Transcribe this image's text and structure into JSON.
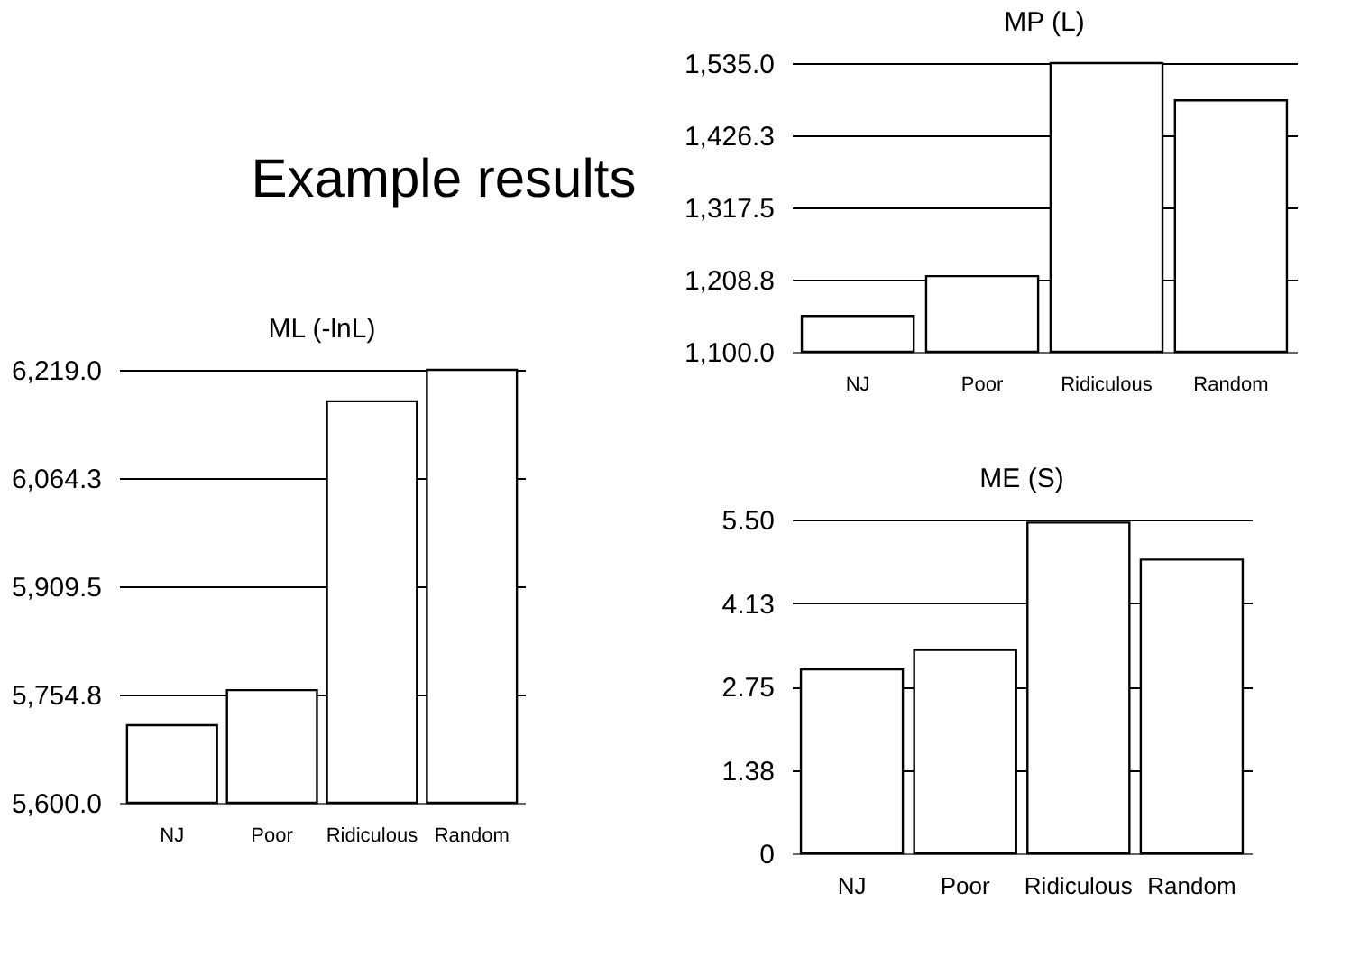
{
  "chart_data": [
    {
      "type": "other",
      "title": "Example results"
    },
    {
      "type": "bar",
      "title": "MP (L)",
      "categories": [
        "NJ",
        "Poor",
        "Ridiculous",
        "Random"
      ],
      "values": [
        1154,
        1214,
        1535,
        1479
      ],
      "color": "#ffffff",
      "ylim": [
        1100,
        1535
      ],
      "yticks": [
        {
          "value": 1100,
          "label": "1,100.0"
        },
        {
          "value": 1208.75,
          "label": "1,208.8"
        },
        {
          "value": 1317.5,
          "label": "1,317.5"
        },
        {
          "value": 1426.25,
          "label": "1,426.3"
        },
        {
          "value": 1535,
          "label": "1,535.0"
        }
      ],
      "grid": "y"
    },
    {
      "type": "bar",
      "title": "ML (-lnL)",
      "categories": [
        "NJ",
        "Poor",
        "Ridiculous",
        "Random"
      ],
      "values": [
        5711,
        5761,
        6174,
        6219
      ],
      "color": "#ffffff",
      "ylim": [
        5600,
        6219
      ],
      "yticks": [
        {
          "value": 5600,
          "label": "5,600.0"
        },
        {
          "value": 5754.75,
          "label": "5,754.8"
        },
        {
          "value": 5909.5,
          "label": "5,909.5"
        },
        {
          "value": 6064.25,
          "label": "6,064.3"
        },
        {
          "value": 6219,
          "label": "6,219.0"
        }
      ],
      "grid": "y"
    },
    {
      "type": "bar",
      "title": "ME (S)",
      "categories": [
        "NJ",
        "Poor",
        "Ridiculous",
        "Random"
      ],
      "values": [
        3.03,
        3.35,
        5.45,
        4.84
      ],
      "color": "#ffffff",
      "ylim": [
        0,
        5.5
      ],
      "yticks": [
        {
          "value": 0,
          "label": "0"
        },
        {
          "value": 1.375,
          "label": "1.38"
        },
        {
          "value": 2.75,
          "label": "2.75"
        },
        {
          "value": 4.125,
          "label": "4.13"
        },
        {
          "value": 5.5,
          "label": "5.50"
        }
      ],
      "grid": "y"
    }
  ]
}
